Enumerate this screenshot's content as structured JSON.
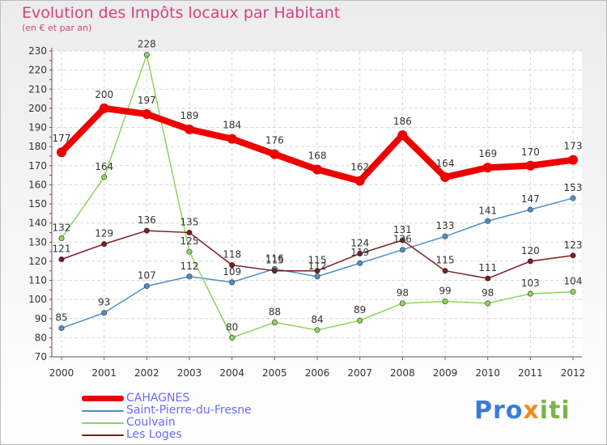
{
  "chart_data": {
    "type": "line",
    "title": "Evolution des Impôts locaux par Habitant",
    "subtitle": "(en € et par an)",
    "x": [
      "2000",
      "2001",
      "2002",
      "2003",
      "2004",
      "2005",
      "2006",
      "2007",
      "2008",
      "2009",
      "2010",
      "2011",
      "2012"
    ],
    "yticks": [
      70,
      80,
      90,
      100,
      110,
      120,
      130,
      140,
      150,
      160,
      170,
      180,
      190,
      200,
      210,
      220,
      230
    ],
    "ylim": [
      70,
      230
    ],
    "grid": true,
    "legend_position": "bottom-left",
    "series": [
      {
        "name": "CAHAGNES",
        "color": "#ee0000",
        "values": [
          177,
          200,
          197,
          189,
          184,
          176,
          168,
          162,
          186,
          164,
          169,
          170,
          173
        ]
      },
      {
        "name": "Saint-Pierre-du-Fresne",
        "color": "#4f8fc6",
        "values": [
          85,
          93,
          107,
          112,
          109,
          116,
          112,
          119,
          126,
          133,
          141,
          147,
          153
        ]
      },
      {
        "name": "Coulvain",
        "color": "#8ed45a",
        "values": [
          132,
          164,
          228,
          125,
          80,
          88,
          84,
          89,
          98,
          99,
          98,
          103,
          104
        ]
      },
      {
        "name": "Les Loges",
        "color": "#7a1e1e",
        "values": [
          121,
          129,
          136,
          135,
          118,
          115,
          115,
          124,
          131,
          115,
          111,
          120,
          123
        ]
      }
    ]
  },
  "brand": {
    "part1": "Pro",
    "part2": "x",
    "part3": "iti"
  }
}
